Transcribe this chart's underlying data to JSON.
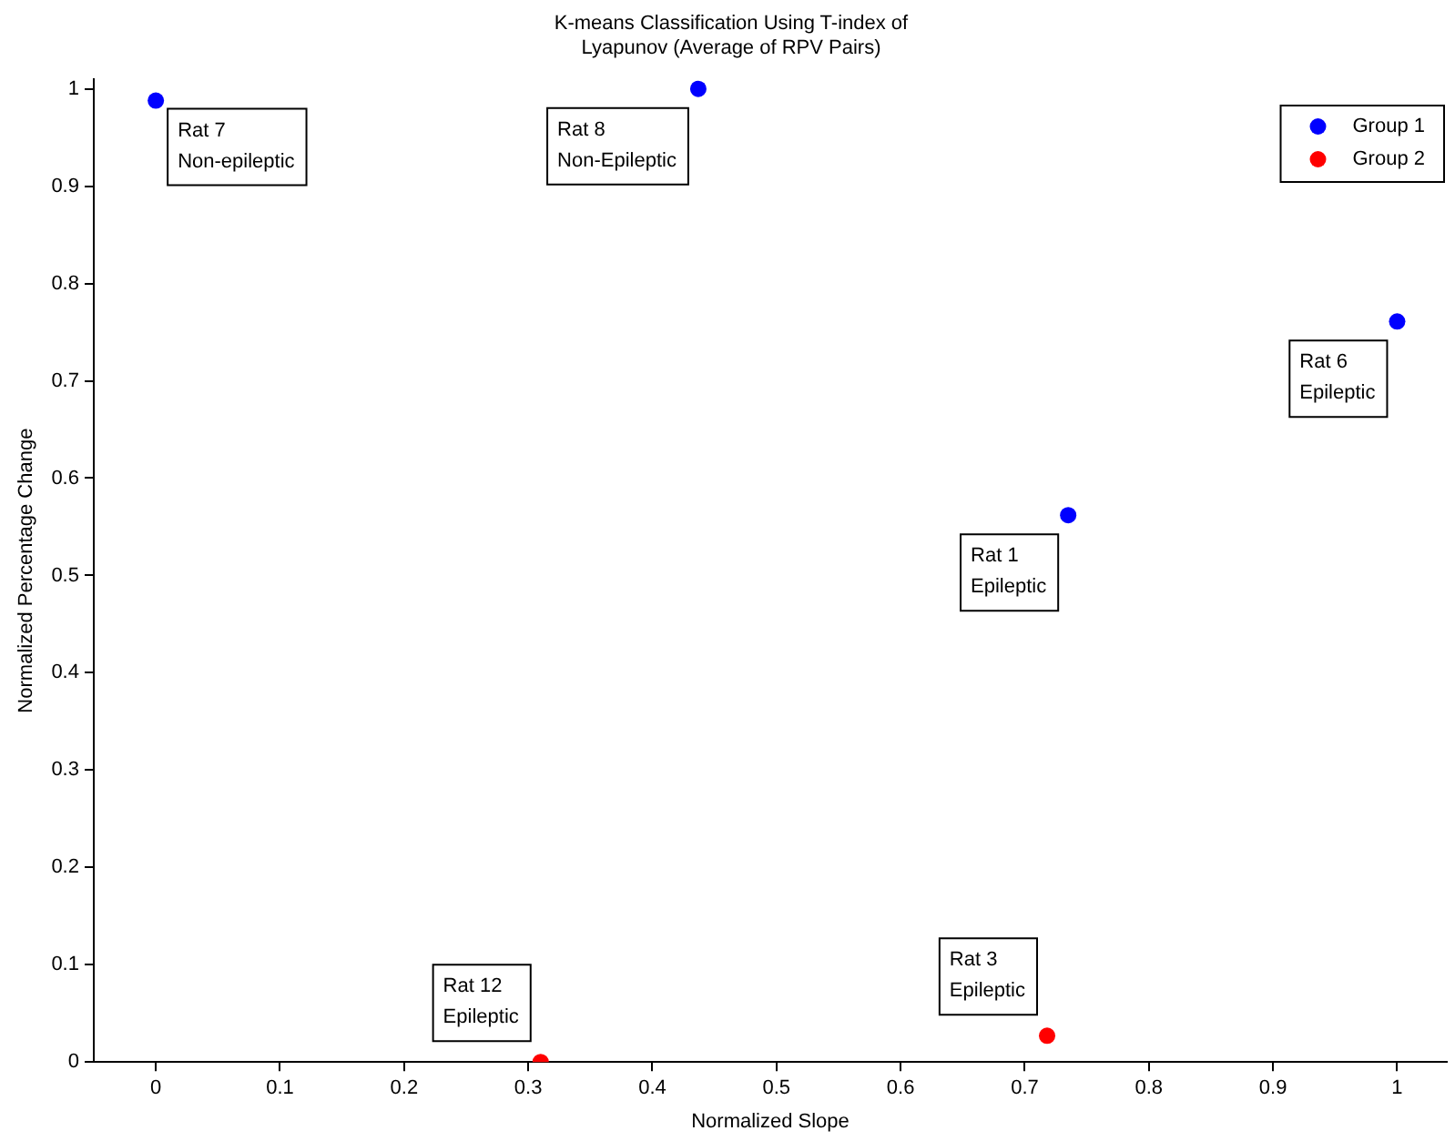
{
  "chart_data": {
    "type": "scatter",
    "title": "K-means Classification Using T-index of\nLyapunov (Average of RPV Pairs)",
    "xlabel": "Normalized Slope",
    "ylabel": "Normalized Percentage Change",
    "series": [
      {
        "name": "Group 1",
        "color": "#0000ff",
        "x": [
          0,
          0.437,
          1,
          0.735
        ],
        "values": [
          0.988,
          1,
          0.761,
          0.562
        ]
      },
      {
        "name": "Group 2",
        "color": "#ff0000",
        "x": [
          0.31,
          0.718
        ],
        "values": [
          0,
          0.027
        ]
      }
    ],
    "xlim": [
      -0.05,
      1.04
    ],
    "ylim": [
      0,
      1.01
    ],
    "xticks": [
      0,
      0.1,
      0.2,
      0.3,
      0.4,
      0.5,
      0.6,
      0.7,
      0.8,
      0.9,
      1
    ],
    "yticks": [
      0,
      0.1,
      0.2,
      0.3,
      0.4,
      0.5,
      0.6,
      0.7,
      0.8,
      0.9,
      1
    ],
    "annotations": [
      {
        "text": "Rat 7\nNon-epileptic",
        "x": 0,
        "y": 0.988
      },
      {
        "text": "Rat 8\nNon-Epileptic",
        "x": 0.437,
        "y": 1
      },
      {
        "text": "Rat 6\nEpileptic",
        "x": 1,
        "y": 0.761
      },
      {
        "text": "Rat 1\nEpileptic",
        "x": 0.735,
        "y": 0.562
      },
      {
        "text": "Rat 12\nEpileptic",
        "x": 0.31,
        "y": 0
      },
      {
        "text": "Rat 3\nEpileptic",
        "x": 0.718,
        "y": 0.027
      }
    ],
    "grid": false,
    "legend": "top right",
    "marker": "circle"
  }
}
